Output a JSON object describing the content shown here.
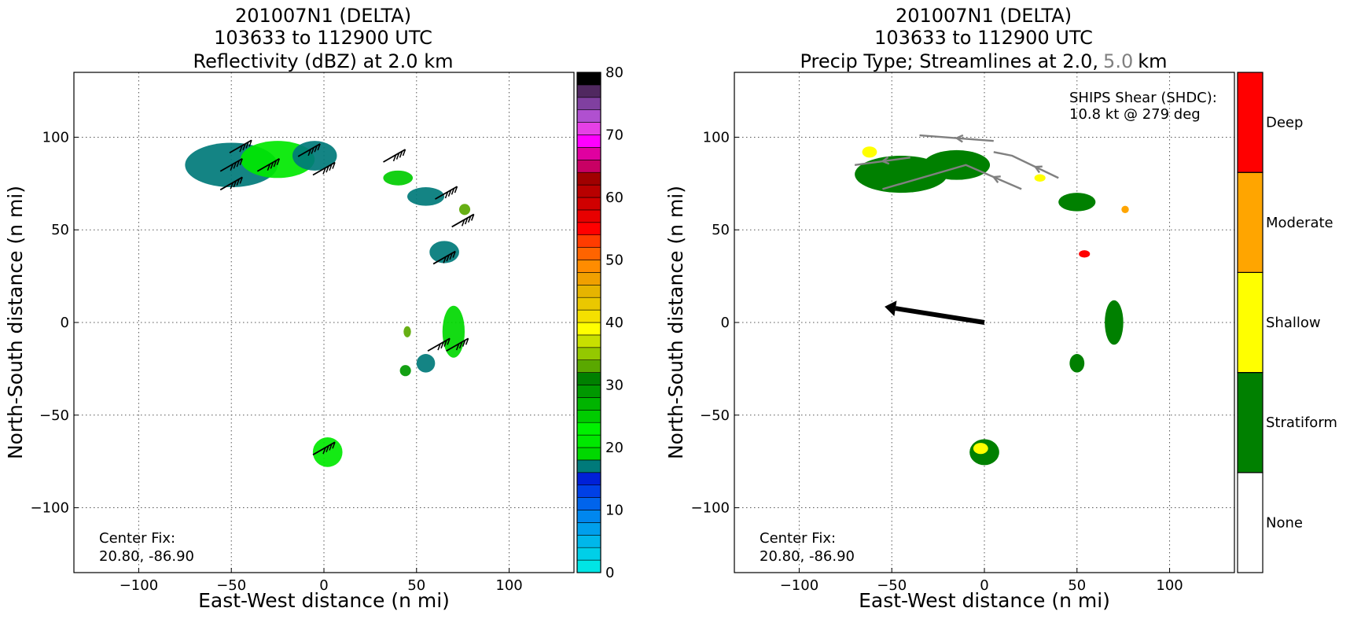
{
  "colors": {
    "stratiform": "#008000",
    "shallow": "#ffff00",
    "moderate": "#ffa500",
    "deep": "#ff0000",
    "none": "#ffffff",
    "streamline": "#808080",
    "shear_arrow": "#000000"
  },
  "icons": [
    "wind-barb-icon",
    "streamline-arrow-icon",
    "shear-vector-icon"
  ],
  "chart_data": [
    {
      "type": "heatmap",
      "title_line1": "201007N1 (DELTA)",
      "title_line2": "103633 to 112900 UTC",
      "title_line3": "Reflectivity (dBZ) at 2.0 km",
      "xlabel": "East-West distance (n mi)",
      "ylabel": "North-South distance (n mi)",
      "xlim": [
        -135,
        135
      ],
      "ylim": [
        -135,
        135
      ],
      "xticks": [
        "−100",
        "−50",
        "0",
        "50",
        "100"
      ],
      "yticks": [
        "−100",
        "−50",
        "0",
        "50",
        "100"
      ],
      "grid": true,
      "annotation_line1": "Center Fix:",
      "annotation_line2": "20.80, -86.90",
      "colorbar": {
        "min": 0,
        "max": 80,
        "step": 2.5,
        "tick_labels": [
          "0",
          "10",
          "20",
          "30",
          "40",
          "50",
          "60",
          "70",
          "80"
        ],
        "colors": [
          "#00e5e5",
          "#00cfe8",
          "#00b7ea",
          "#009fec",
          "#0087ee",
          "#0064ec",
          "#0040e6",
          "#0020d8",
          "#007a7a",
          "#00d800",
          "#00e800",
          "#00f000",
          "#00cc00",
          "#00b400",
          "#009800",
          "#008000",
          "#5aa800",
          "#94c800",
          "#c8e000",
          "#ffff00",
          "#f4e000",
          "#eac800",
          "#e6b400",
          "#f0a000",
          "#ff8c00",
          "#ff6400",
          "#ff3c00",
          "#ff0000",
          "#e80000",
          "#d00000",
          "#b80000",
          "#a00000",
          "#c80064",
          "#e000a0",
          "#ff00ff",
          "#e640e6",
          "#b050d0",
          "#8040a0",
          "#502860",
          "#000000"
        ]
      },
      "echo_regions": [
        {
          "x": -50,
          "y": 85,
          "rx": 25,
          "ry": 12,
          "dbz": 22
        },
        {
          "x": -25,
          "y": 88,
          "rx": 20,
          "ry": 10,
          "dbz": 27
        },
        {
          "x": -5,
          "y": 90,
          "rx": 12,
          "ry": 8,
          "dbz": 20
        },
        {
          "x": 55,
          "y": 68,
          "rx": 10,
          "ry": 5,
          "dbz": 22
        },
        {
          "x": 65,
          "y": 38,
          "rx": 8,
          "ry": 6,
          "dbz": 22
        },
        {
          "x": 70,
          "y": -5,
          "rx": 6,
          "ry": 14,
          "dbz": 24
        },
        {
          "x": 55,
          "y": -22,
          "rx": 5,
          "ry": 5,
          "dbz": 22
        },
        {
          "x": 2,
          "y": -70,
          "rx": 8,
          "ry": 8,
          "dbz": 27
        },
        {
          "x": 40,
          "y": 78,
          "rx": 8,
          "ry": 4,
          "dbz": 30
        },
        {
          "x": 76,
          "y": 61,
          "rx": 3,
          "ry": 3,
          "dbz": 40
        },
        {
          "x": 44,
          "y": -26,
          "rx": 3,
          "ry": 3,
          "dbz": 37
        },
        {
          "x": 45,
          "y": -5,
          "rx": 2,
          "ry": 3,
          "dbz": 41
        }
      ],
      "wind_barbs": [
        {
          "x": -45,
          "y": 95
        },
        {
          "x": -50,
          "y": 85
        },
        {
          "x": -30,
          "y": 85
        },
        {
          "x": -50,
          "y": 75
        },
        {
          "x": -8,
          "y": 93
        },
        {
          "x": 0,
          "y": 83
        },
        {
          "x": 38,
          "y": 90
        },
        {
          "x": 66,
          "y": 70
        },
        {
          "x": 75,
          "y": 55
        },
        {
          "x": 65,
          "y": 35
        },
        {
          "x": 62,
          "y": -12
        },
        {
          "x": 72,
          "y": -12
        },
        {
          "x": 0,
          "y": -68
        }
      ]
    },
    {
      "type": "heatmap",
      "title_line1": "201007N1 (DELTA)",
      "title_line2": "103633 to 112900 UTC",
      "title_line3_a": "Precip Type; Streamlines at 2.0,",
      "title_line3_b": "5.0",
      "title_line3_c": "km",
      "xlabel": "East-West distance (n mi)",
      "ylabel": "North-South distance (n mi)",
      "xlim": [
        -135,
        135
      ],
      "ylim": [
        -135,
        135
      ],
      "xticks": [
        "−100",
        "−50",
        "0",
        "50",
        "100"
      ],
      "yticks": [
        "−100",
        "−50",
        "0",
        "50",
        "100"
      ],
      "grid": true,
      "shear_line1": "SHIPS Shear (SHDC):",
      "shear_line2": "10.8 kt @ 279 deg",
      "shear_kt": 10.8,
      "shear_deg": 279,
      "annotation_line1": "Center Fix:",
      "annotation_line2": "20.80, -86.90",
      "legend_categories": [
        "None",
        "Stratiform",
        "Shallow",
        "Moderate",
        "Deep"
      ],
      "precip_regions": [
        {
          "x": -45,
          "y": 80,
          "rx": 25,
          "ry": 10,
          "cat": "stratiform"
        },
        {
          "x": -15,
          "y": 85,
          "rx": 18,
          "ry": 8,
          "cat": "stratiform"
        },
        {
          "x": 50,
          "y": 65,
          "rx": 10,
          "ry": 5,
          "cat": "stratiform"
        },
        {
          "x": 70,
          "y": 0,
          "rx": 5,
          "ry": 12,
          "cat": "stratiform"
        },
        {
          "x": 50,
          "y": -22,
          "rx": 4,
          "ry": 5,
          "cat": "stratiform"
        },
        {
          "x": 0,
          "y": -70,
          "rx": 8,
          "ry": 7,
          "cat": "stratiform"
        },
        {
          "x": -62,
          "y": 92,
          "rx": 4,
          "ry": 3,
          "cat": "shallow"
        },
        {
          "x": 30,
          "y": 78,
          "rx": 3,
          "ry": 2,
          "cat": "shallow"
        },
        {
          "x": -2,
          "y": -68,
          "rx": 4,
          "ry": 3,
          "cat": "shallow"
        },
        {
          "x": 76,
          "y": 61,
          "rx": 2,
          "ry": 2,
          "cat": "moderate"
        },
        {
          "x": 54,
          "y": 37,
          "rx": 3,
          "ry": 2,
          "cat": "deep"
        }
      ]
    }
  ]
}
